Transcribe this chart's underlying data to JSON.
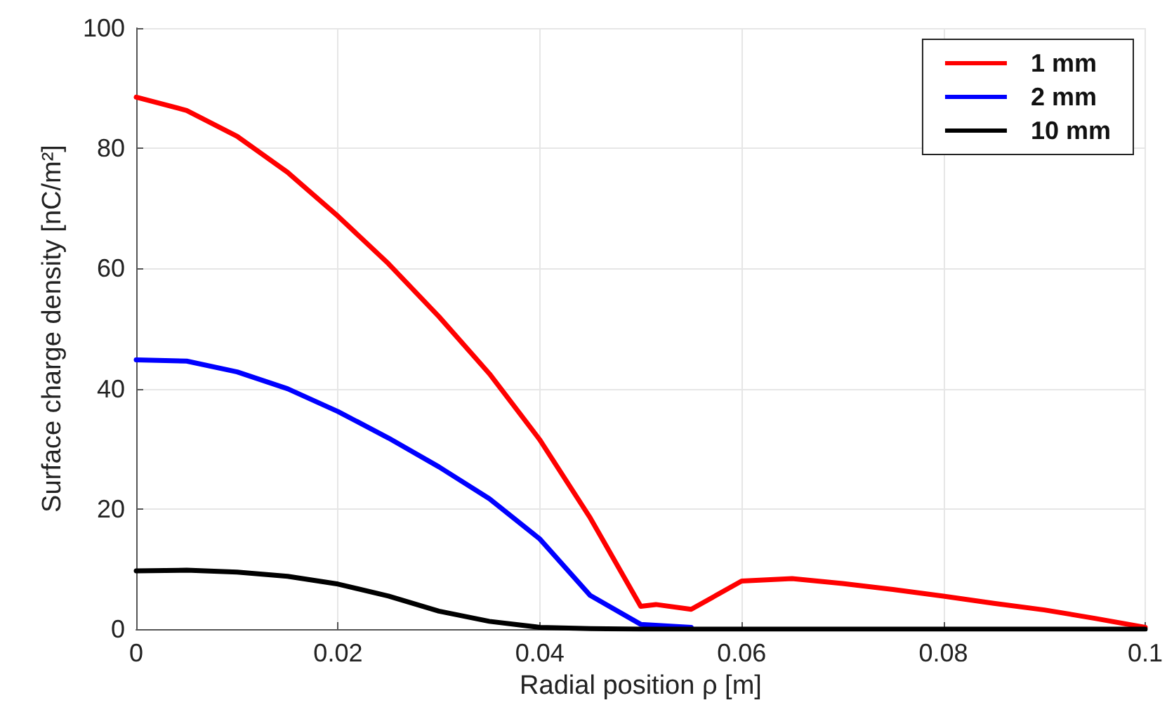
{
  "chart_data": {
    "type": "line",
    "xlabel": "Radial position ρ [m]",
    "ylabel": "Surface charge density [nC/m²]",
    "xlim": [
      0,
      0.1
    ],
    "xticks": [
      0,
      0.02,
      0.04,
      0.06,
      0.08,
      0.1
    ],
    "ylim": [
      0,
      100
    ],
    "yticks": [
      0,
      20,
      40,
      60,
      80,
      100
    ],
    "grid": true,
    "legend": "top right",
    "marker": "none",
    "line_style": "solid",
    "series": [
      {
        "name": "1 mm",
        "color": "#ff0000",
        "x": [
          0,
          0.005,
          0.01,
          0.015,
          0.02,
          0.025,
          0.03,
          0.035,
          0.04,
          0.045,
          0.05,
          0.0515,
          0.055,
          0.06,
          0.065,
          0.07,
          0.075,
          0.08,
          0.085,
          0.09,
          0.095,
          0.1
        ],
        "values": [
          88.5,
          86.3,
          82,
          76,
          68.7,
          60.8,
          52,
          42.5,
          31.5,
          18.5,
          3.8,
          4.1,
          3.3,
          8,
          8.4,
          7.6,
          6.6,
          5.5,
          4.3,
          3.2,
          1.8,
          0.3
        ]
      },
      {
        "name": "2 mm",
        "color": "#0000ff",
        "x": [
          0,
          0.005,
          0.01,
          0.015,
          0.02,
          0.025,
          0.03,
          0.035,
          0.04,
          0.045,
          0.05,
          0.055
        ],
        "values": [
          44.8,
          44.6,
          42.8,
          40,
          36.2,
          31.8,
          27,
          21.7,
          15,
          5.6,
          0.8,
          0.3
        ]
      },
      {
        "name": "10 mm",
        "color": "#000000",
        "x": [
          0,
          0.005,
          0.01,
          0.015,
          0.02,
          0.025,
          0.03,
          0.035,
          0.04,
          0.045,
          0.05,
          0.06,
          0.07,
          0.08,
          0.09,
          0.1
        ],
        "values": [
          9.7,
          9.8,
          9.5,
          8.8,
          7.5,
          5.5,
          3,
          1.3,
          0.3,
          0.1,
          0,
          0,
          0,
          0,
          0,
          0
        ]
      }
    ]
  }
}
